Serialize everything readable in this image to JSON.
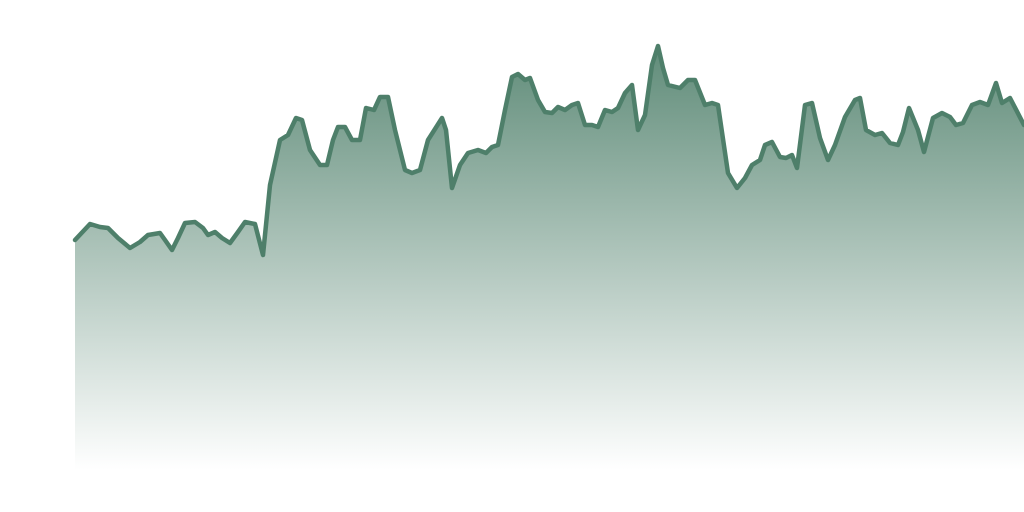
{
  "chart_data": {
    "type": "area",
    "color": "#4e7f6a",
    "x": [
      75,
      90,
      100,
      108,
      118,
      130,
      140,
      148,
      160,
      165,
      172,
      178,
      185,
      195,
      203,
      208,
      215,
      222,
      230,
      238,
      245,
      255,
      263,
      270,
      280,
      288,
      296,
      302,
      310,
      320,
      327,
      333,
      338,
      345,
      352,
      360,
      366,
      374,
      380,
      388,
      395,
      405,
      412,
      420,
      428,
      442,
      446,
      452,
      460,
      468,
      478,
      486,
      492,
      498,
      505,
      512,
      518,
      525,
      530,
      538,
      545,
      552,
      558,
      565,
      572,
      578,
      585,
      592,
      598,
      605,
      612,
      618,
      625,
      632,
      638,
      645,
      652,
      658,
      663,
      668,
      680,
      688,
      695,
      705,
      712,
      718,
      728,
      737,
      745,
      752,
      760,
      765,
      772,
      780,
      786,
      792,
      797,
      805,
      812,
      820,
      828,
      835,
      845,
      855,
      860,
      866,
      875,
      882,
      890,
      898,
      903,
      909,
      918,
      924,
      933,
      942,
      950,
      956,
      963,
      972,
      980,
      988,
      996,
      1002,
      1010,
      1024
    ],
    "values": [
      230,
      246,
      243,
      242,
      232,
      222,
      228,
      235,
      237,
      230,
      220,
      232,
      247,
      248,
      242,
      235,
      238,
      232,
      227,
      238,
      248,
      246,
      215,
      285,
      330,
      335,
      352,
      350,
      320,
      305,
      305,
      330,
      343,
      343,
      330,
      330,
      362,
      360,
      373,
      373,
      340,
      300,
      297,
      300,
      330,
      352,
      340,
      282,
      305,
      317,
      320,
      317,
      323,
      325,
      360,
      393,
      396,
      390,
      392,
      370,
      358,
      357,
      363,
      360,
      365,
      367,
      345,
      345,
      343,
      360,
      358,
      362,
      377,
      385,
      340,
      355,
      405,
      424,
      402,
      385,
      382,
      390,
      390,
      365,
      367,
      365,
      297,
      282,
      292,
      305,
      310,
      325,
      328,
      313,
      312,
      315,
      302,
      365,
      367,
      332,
      310,
      325,
      353,
      370,
      372,
      340,
      335,
      337,
      327,
      325,
      338,
      362,
      340,
      318,
      352,
      357,
      353,
      345,
      347,
      365,
      368,
      365,
      387,
      367,
      372,
      345
    ],
    "xlim": [
      75,
      1024
    ],
    "ylim": [
      0,
      430
    ]
  }
}
